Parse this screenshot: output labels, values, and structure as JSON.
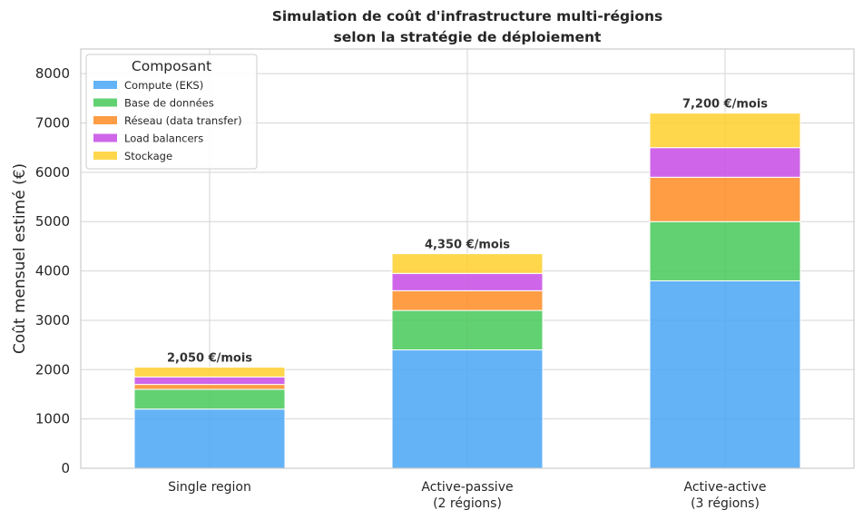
{
  "chart_data": {
    "type": "bar",
    "stacked": true,
    "title_line1": "Simulation de coût d'infrastructure multi-régions",
    "title_line2": "selon la stratégie de déploiement",
    "ylabel": "Coût mensuel estimé (€)",
    "xlabel": "",
    "ylim": [
      0,
      8500
    ],
    "yticks": [
      "0",
      "1000",
      "2000",
      "3000",
      "4000",
      "5000",
      "6000",
      "7000",
      "8000"
    ],
    "grid": true,
    "categories": [
      [
        "Single region"
      ],
      [
        "Active-passive",
        "(2 régions)"
      ],
      [
        "Active-active",
        "(3 régions)"
      ]
    ],
    "series": [
      {
        "name": "Compute (EKS)",
        "color": "#4fa8f5",
        "values": [
          1200,
          2400,
          3800
        ]
      },
      {
        "name": "Base de données",
        "color": "#4ccb5e",
        "values": [
          400,
          800,
          1200
        ]
      },
      {
        "name": "Réseau (data transfer)",
        "color": "#fe8f2a",
        "values": [
          100,
          400,
          900
        ]
      },
      {
        "name": "Load balancers",
        "color": "#c851e6",
        "values": [
          150,
          350,
          600
        ]
      },
      {
        "name": "Stockage",
        "color": "#fed234",
        "values": [
          200,
          400,
          700
        ]
      }
    ],
    "totals": [
      "2,050 €/mois",
      "4,350 €/mois",
      "7,200 €/mois"
    ],
    "legend": {
      "title": "Composant",
      "position": "top-left"
    }
  }
}
